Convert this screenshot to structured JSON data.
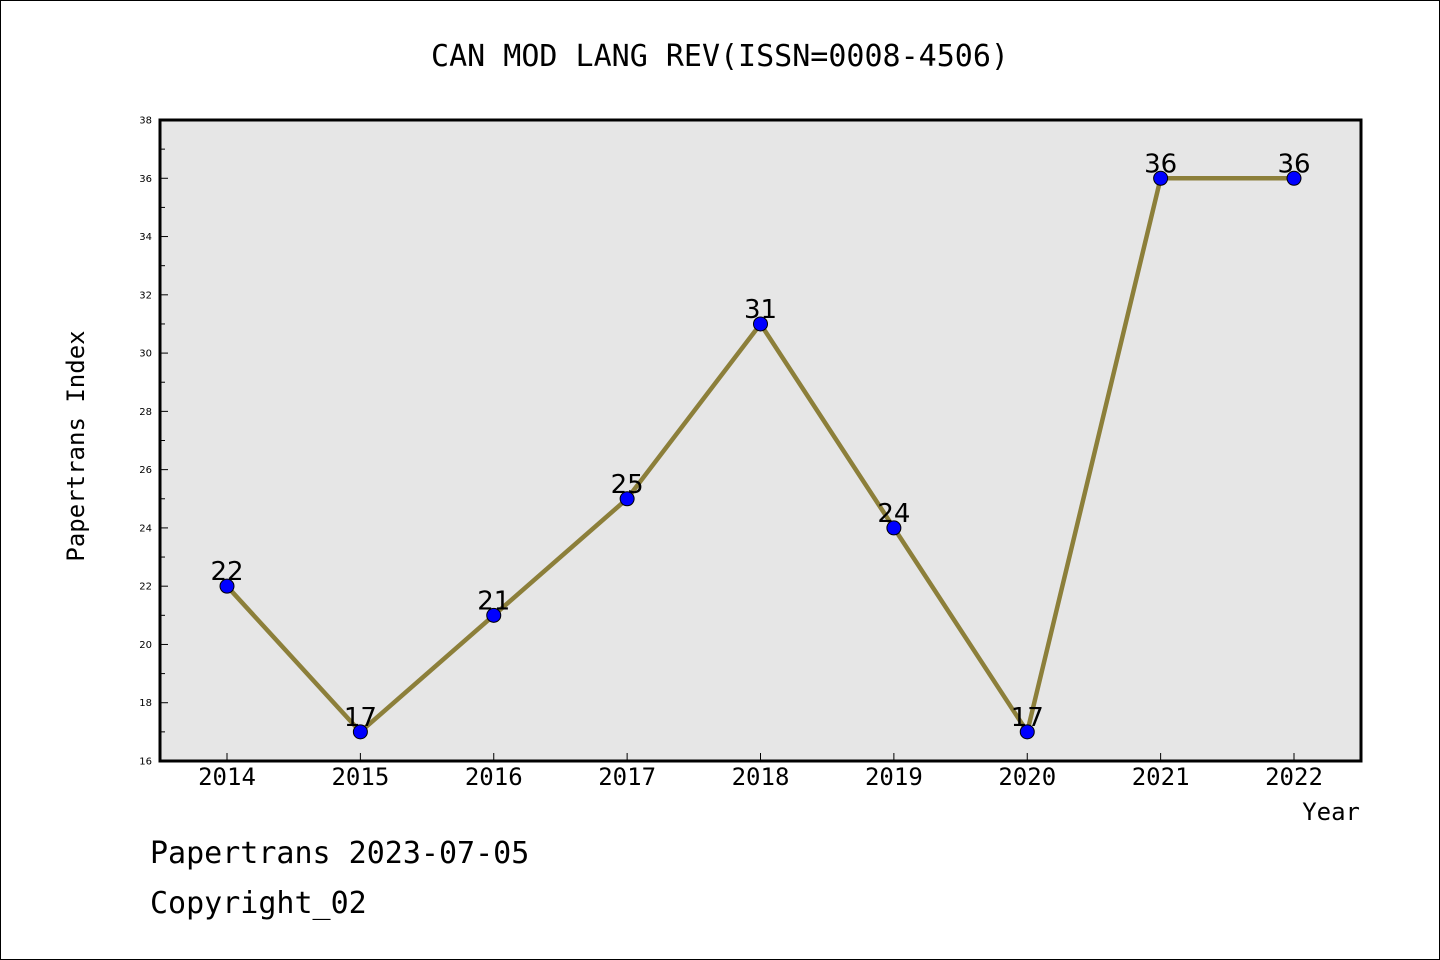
{
  "chart_data": {
    "type": "line",
    "title": "CAN MOD LANG REV(ISSN=0008-4506)",
    "xlabel": "Year",
    "ylabel": "Papertrans Index",
    "categories": [
      "2014",
      "2015",
      "2016",
      "2017",
      "2018",
      "2019",
      "2020",
      "2021",
      "2022"
    ],
    "series": [
      {
        "values": [
          22,
          17,
          21,
          25,
          31,
          24,
          17,
          36,
          36
        ]
      }
    ],
    "ylim": [
      16,
      38
    ],
    "yticks": [
      "16",
      "18",
      "20",
      "22",
      "24",
      "26",
      "28",
      "30",
      "32",
      "34",
      "36",
      "38"
    ],
    "data_labels": [
      "22",
      "17",
      "21",
      "25",
      "31",
      "24",
      "17",
      "36",
      "36"
    ],
    "grid": false,
    "plot_background": "#e6e6e6",
    "line_color": "#8c7f3a",
    "marker_color": "#0000ff"
  },
  "footer": {
    "date_line": "Papertrans 2023-07-05",
    "copyright": "Copyright_02"
  }
}
